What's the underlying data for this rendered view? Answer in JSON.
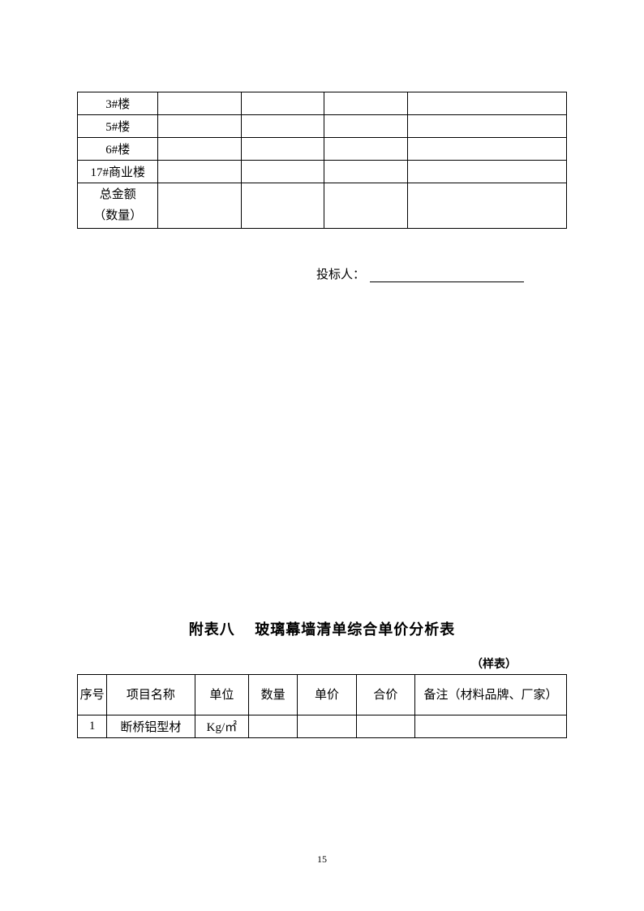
{
  "table1": {
    "rows": [
      {
        "label": "3#楼",
        "c2": "",
        "c3": "",
        "c4": "",
        "c5": ""
      },
      {
        "label": "5#楼",
        "c2": "",
        "c3": "",
        "c4": "",
        "c5": ""
      },
      {
        "label": "6#楼",
        "c2": "",
        "c3": "",
        "c4": "",
        "c5": ""
      },
      {
        "label": "17#商业楼",
        "c2": "",
        "c3": "",
        "c4": "",
        "c5": ""
      },
      {
        "label": "总金额\n（数量）",
        "c2": "",
        "c3": "",
        "c4": "",
        "c5": ""
      }
    ]
  },
  "bidder": {
    "label": "投标人："
  },
  "section": {
    "title": "附表八　 玻璃幕墙清单综合单价分析表",
    "sample_label": "（样表）"
  },
  "table2": {
    "headers": {
      "seq": "序号",
      "name": "项目名称",
      "unit": "单位",
      "qty": "数量",
      "unit_price": "单价",
      "total": "合价",
      "remark": "备注（材料品牌、厂家）"
    },
    "rows": [
      {
        "seq": "1",
        "name": "断桥铝型材",
        "unit": "Kg/㎡",
        "qty": "",
        "unit_price": "",
        "total": "",
        "remark": ""
      }
    ]
  },
  "page_number": "15"
}
